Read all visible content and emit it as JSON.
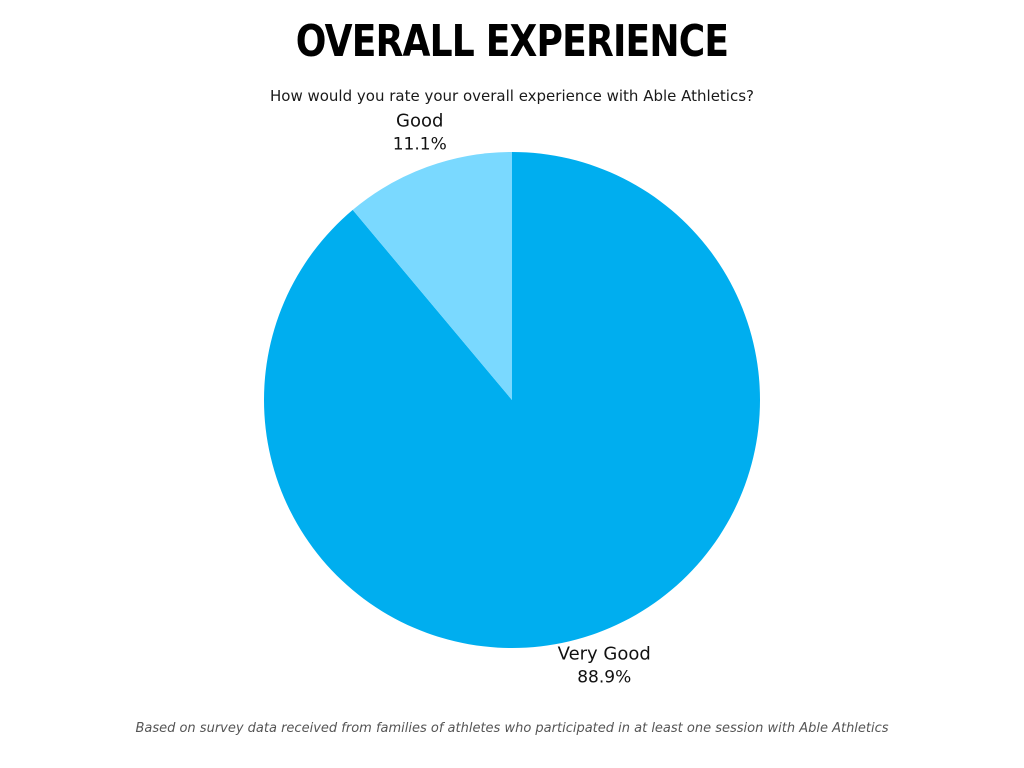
{
  "title": "OVERALL EXPERIENCE",
  "subtitle": "How would you rate your overall experience with Able Athletics?",
  "footnote": "Based on survey data received from families of athletes who participated in at least one session with Able Athletics",
  "chart_data": {
    "type": "pie",
    "title": "OVERALL EXPERIENCE",
    "start_angle_deg": 0,
    "direction": "clockwise",
    "slices": [
      {
        "label": "Very Good",
        "value": 88.9,
        "value_label": "88.9%",
        "color": "#00AEEF"
      },
      {
        "label": "Good",
        "value": 11.1,
        "value_label": "11.1%",
        "color": "#7AD9FF"
      }
    ]
  }
}
